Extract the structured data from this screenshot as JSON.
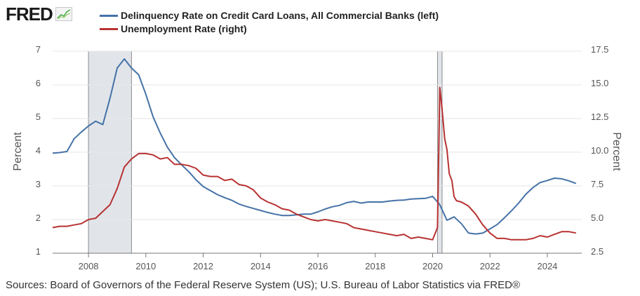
{
  "brand": {
    "logo_text": "FRED",
    "logo_icon": "chart-line-icon"
  },
  "source_note": "Sources: Board of Governors of the Federal Reserve System (US); U.S. Bureau of Labor Statistics via FRED®",
  "chart_data": {
    "type": "line",
    "title": "",
    "ylabel_left": "Percent",
    "ylabel_right": "Percent",
    "xlim": [
      2006.75,
      2025.2
    ],
    "ylim_left": [
      1,
      7
    ],
    "ylim_right": [
      2.5,
      17.5
    ],
    "x_ticks": [
      2008,
      2010,
      2012,
      2014,
      2016,
      2018,
      2020,
      2022,
      2024
    ],
    "x_tick_labels": [
      "2008",
      "2010",
      "2012",
      "2014",
      "2016",
      "2018",
      "2020",
      "2022",
      "2024"
    ],
    "y_ticks_left": [
      1,
      2,
      3,
      4,
      5,
      6,
      7
    ],
    "y_tick_labels_left": [
      "1",
      "2",
      "3",
      "4",
      "5",
      "6",
      "7"
    ],
    "y_ticks_right": [
      2.5,
      5.0,
      7.5,
      10.0,
      12.5,
      15.0,
      17.5
    ],
    "y_tick_labels_right": [
      "2.5",
      "5.0",
      "7.5",
      "10.0",
      "12.5",
      "15.0",
      "17.5"
    ],
    "grid": "horizontal",
    "legend_position": "top-left",
    "recessions": [
      {
        "start": 2008.0,
        "end": 2009.5
      },
      {
        "start": 2020.17,
        "end": 2020.33
      }
    ],
    "series": [
      {
        "name": "Delinquency Rate on Credit Card Loans, All Commercial Banks (left)",
        "axis": "left",
        "color": "#4572a7",
        "x": [
          2006.75,
          2007.0,
          2007.25,
          2007.5,
          2007.75,
          2008.0,
          2008.25,
          2008.5,
          2008.75,
          2009.0,
          2009.25,
          2009.5,
          2009.75,
          2010.0,
          2010.25,
          2010.5,
          2010.75,
          2011.0,
          2011.25,
          2011.5,
          2011.75,
          2012.0,
          2012.25,
          2012.5,
          2012.75,
          2013.0,
          2013.25,
          2013.5,
          2013.75,
          2014.0,
          2014.25,
          2014.5,
          2014.75,
          2015.0,
          2015.25,
          2015.5,
          2015.75,
          2016.0,
          2016.25,
          2016.5,
          2016.75,
          2017.0,
          2017.25,
          2017.5,
          2017.75,
          2018.0,
          2018.25,
          2018.5,
          2018.75,
          2019.0,
          2019.25,
          2019.5,
          2019.75,
          2020.0,
          2020.25,
          2020.5,
          2020.75,
          2021.0,
          2021.25,
          2021.5,
          2021.75,
          2022.0,
          2022.25,
          2022.5,
          2022.75,
          2023.0,
          2023.25,
          2023.5,
          2023.75,
          2024.0,
          2024.25,
          2024.5,
          2024.75,
          2025.0
        ],
        "values": [
          3.97,
          3.99,
          4.02,
          4.4,
          4.6,
          4.78,
          4.92,
          4.82,
          5.6,
          6.5,
          6.77,
          6.5,
          6.3,
          5.72,
          5.06,
          4.57,
          4.15,
          3.84,
          3.62,
          3.42,
          3.18,
          2.98,
          2.86,
          2.74,
          2.65,
          2.57,
          2.46,
          2.39,
          2.33,
          2.27,
          2.21,
          2.16,
          2.12,
          2.12,
          2.14,
          2.16,
          2.16,
          2.23,
          2.31,
          2.38,
          2.42,
          2.5,
          2.54,
          2.49,
          2.52,
          2.52,
          2.52,
          2.55,
          2.57,
          2.58,
          2.61,
          2.62,
          2.63,
          2.69,
          2.44,
          1.98,
          2.08,
          1.88,
          1.6,
          1.57,
          1.6,
          1.72,
          1.85,
          2.05,
          2.26,
          2.49,
          2.75,
          2.95,
          3.1,
          3.16,
          3.23,
          3.21,
          3.15,
          3.07
        ]
      },
      {
        "name": "Unemployment Rate (right)",
        "axis": "right",
        "color": "#b83232",
        "x": [
          2006.75,
          2007.0,
          2007.25,
          2007.5,
          2007.75,
          2008.0,
          2008.25,
          2008.5,
          2008.75,
          2009.0,
          2009.25,
          2009.5,
          2009.75,
          2010.0,
          2010.25,
          2010.5,
          2010.75,
          2011.0,
          2011.25,
          2011.5,
          2011.75,
          2012.0,
          2012.25,
          2012.5,
          2012.75,
          2013.0,
          2013.25,
          2013.5,
          2013.75,
          2014.0,
          2014.25,
          2014.5,
          2014.75,
          2015.0,
          2015.25,
          2015.5,
          2015.75,
          2016.0,
          2016.25,
          2016.5,
          2016.75,
          2017.0,
          2017.25,
          2017.5,
          2017.75,
          2018.0,
          2018.25,
          2018.5,
          2018.75,
          2019.0,
          2019.25,
          2019.5,
          2019.75,
          2020.0,
          2020.17,
          2020.25,
          2020.33,
          2020.42,
          2020.5,
          2020.58,
          2020.67,
          2020.75,
          2020.83,
          2021.0,
          2021.25,
          2021.5,
          2021.75,
          2022.0,
          2022.25,
          2022.5,
          2022.75,
          2023.0,
          2023.25,
          2023.5,
          2023.75,
          2024.0,
          2024.25,
          2024.5,
          2024.75,
          2025.0
        ],
        "values": [
          4.4,
          4.5,
          4.5,
          4.6,
          4.7,
          5.0,
          5.1,
          5.6,
          6.1,
          7.3,
          8.9,
          9.5,
          9.9,
          9.9,
          9.8,
          9.5,
          9.6,
          9.1,
          9.1,
          9.0,
          8.8,
          8.3,
          8.2,
          8.2,
          7.9,
          8.0,
          7.6,
          7.5,
          7.2,
          6.6,
          6.3,
          6.1,
          5.8,
          5.7,
          5.4,
          5.2,
          5.0,
          4.9,
          5.0,
          4.9,
          4.8,
          4.7,
          4.4,
          4.3,
          4.2,
          4.1,
          4.0,
          3.9,
          3.8,
          3.9,
          3.6,
          3.7,
          3.6,
          3.5,
          4.4,
          14.8,
          13.2,
          11.0,
          10.2,
          8.4,
          7.9,
          6.7,
          6.4,
          6.3,
          6.0,
          5.4,
          4.6,
          4.0,
          3.6,
          3.6,
          3.5,
          3.5,
          3.5,
          3.6,
          3.8,
          3.7,
          3.9,
          4.1,
          4.1,
          4.0
        ]
      }
    ]
  }
}
